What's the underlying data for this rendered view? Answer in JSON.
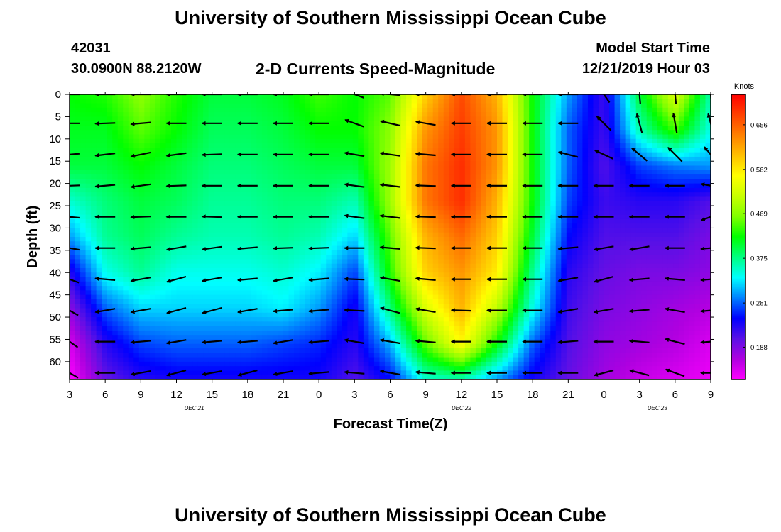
{
  "header": {
    "title": "University of Southern Mississippi Ocean Cube",
    "station_id": "42031",
    "location": "30.0900N 88.2120W",
    "subtitle": "2-D Currents Speed-Magnitude",
    "model_start_label": "Model Start Time",
    "model_start_value": "12/21/2019 Hour 03"
  },
  "footer": {
    "title": "University of Southern Mississippi Ocean Cube"
  },
  "chart_data": {
    "type": "heatmap",
    "title": "2-D Currents Speed-Magnitude",
    "xlabel": "Forecast Time(Z)",
    "ylabel": "Depth (ft)",
    "x_tick_labels": [
      "3",
      "6",
      "9",
      "12",
      "15",
      "18",
      "21",
      "0",
      "3",
      "6",
      "9",
      "12",
      "15",
      "18",
      "21",
      "0",
      "3",
      "6",
      "9"
    ],
    "x_range_hours_from_start": [
      0,
      54
    ],
    "day_labels": [
      {
        "text": "DEC  21",
        "at_hour": 10.5
      },
      {
        "text": "DEC  22",
        "at_hour": 33
      },
      {
        "text": "DEC  23",
        "at_hour": 49.5
      }
    ],
    "y_tick_labels": [
      "0",
      "5",
      "10",
      "15",
      "20",
      "25",
      "30",
      "35",
      "40",
      "45",
      "50",
      "55",
      "60"
    ],
    "ylim": [
      0,
      64
    ],
    "y_inverted": true,
    "colorbar": {
      "unit": "Knots",
      "tick_labels": [
        "0.656",
        "0.562",
        "0.469",
        "0.375",
        "0.281",
        "0.188"
      ],
      "range": [
        0.12,
        0.72
      ],
      "colors": [
        "#ff00ff",
        "#b000e0",
        "#5a10e6",
        "#0000ff",
        "#0080ff",
        "#00ffff",
        "#00ff80",
        "#00ff00",
        "#80ff00",
        "#c8ff00",
        "#ffff00",
        "#ffc000",
        "#ff8000",
        "#ff4000",
        "#ff0000"
      ]
    },
    "speed_grid": {
      "x_hours": [
        0,
        3,
        6,
        9,
        12,
        15,
        18,
        21,
        24,
        27,
        30,
        33,
        36,
        39,
        42,
        45,
        48,
        51,
        54
      ],
      "depths_ft": [
        0,
        8,
        16,
        24,
        32,
        40,
        48,
        56,
        64
      ],
      "rows": [
        [
          0.42,
          0.43,
          0.47,
          0.43,
          0.4,
          0.4,
          0.41,
          0.44,
          0.42,
          0.45,
          0.58,
          0.67,
          0.6,
          0.42,
          0.3,
          0.22,
          0.4,
          0.52,
          0.36
        ],
        [
          0.41,
          0.41,
          0.45,
          0.42,
          0.39,
          0.39,
          0.4,
          0.42,
          0.42,
          0.47,
          0.62,
          0.68,
          0.62,
          0.42,
          0.28,
          0.22,
          0.36,
          0.44,
          0.34
        ],
        [
          0.4,
          0.4,
          0.42,
          0.4,
          0.38,
          0.38,
          0.39,
          0.4,
          0.4,
          0.48,
          0.64,
          0.69,
          0.62,
          0.42,
          0.28,
          0.21,
          0.27,
          0.29,
          0.3
        ],
        [
          0.35,
          0.38,
          0.4,
          0.39,
          0.37,
          0.37,
          0.38,
          0.38,
          0.36,
          0.48,
          0.64,
          0.69,
          0.6,
          0.42,
          0.27,
          0.22,
          0.23,
          0.23,
          0.21
        ],
        [
          0.3,
          0.37,
          0.39,
          0.37,
          0.36,
          0.36,
          0.37,
          0.36,
          0.32,
          0.45,
          0.6,
          0.65,
          0.58,
          0.4,
          0.25,
          0.21,
          0.21,
          0.21,
          0.19
        ],
        [
          0.23,
          0.34,
          0.37,
          0.34,
          0.34,
          0.34,
          0.35,
          0.33,
          0.27,
          0.43,
          0.58,
          0.62,
          0.56,
          0.37,
          0.23,
          0.2,
          0.19,
          0.19,
          0.18
        ],
        [
          0.18,
          0.28,
          0.32,
          0.32,
          0.32,
          0.32,
          0.33,
          0.3,
          0.24,
          0.38,
          0.52,
          0.6,
          0.5,
          0.34,
          0.22,
          0.19,
          0.18,
          0.17,
          0.16
        ],
        [
          0.14,
          0.23,
          0.27,
          0.28,
          0.28,
          0.28,
          0.27,
          0.26,
          0.23,
          0.31,
          0.45,
          0.55,
          0.42,
          0.28,
          0.21,
          0.18,
          0.17,
          0.16,
          0.14
        ],
        [
          0.12,
          0.2,
          0.23,
          0.24,
          0.24,
          0.24,
          0.24,
          0.24,
          0.21,
          0.25,
          0.35,
          0.36,
          0.3,
          0.24,
          0.2,
          0.17,
          0.15,
          0.14,
          0.13
        ]
      ]
    },
    "vectors": {
      "x_hours": [
        0,
        3,
        6,
        9,
        12,
        15,
        18,
        21,
        24,
        27,
        30,
        33,
        36,
        39,
        42,
        45,
        48,
        51,
        54
      ],
      "depths_ft": [
        0,
        6.5,
        13.5,
        20.5,
        27.5,
        34.5,
        41.5,
        48.5,
        55.5,
        62.5
      ],
      "angle_deg": [
        [
          180,
          180,
          180,
          180,
          180,
          180,
          180,
          180,
          200,
          185,
          180,
          180,
          180,
          180,
          180,
          235,
          265,
          265,
          265
        ],
        [
          180,
          178,
          175,
          180,
          180,
          180,
          180,
          180,
          200,
          193,
          190,
          180,
          180,
          180,
          180,
          225,
          255,
          260,
          255
        ],
        [
          175,
          173,
          168,
          172,
          178,
          180,
          180,
          180,
          190,
          188,
          185,
          180,
          180,
          180,
          195,
          205,
          220,
          225,
          230
        ],
        [
          178,
          175,
          172,
          178,
          180,
          180,
          180,
          180,
          188,
          187,
          182,
          180,
          180,
          180,
          180,
          180,
          180,
          180,
          190
        ],
        [
          185,
          180,
          178,
          180,
          182,
          180,
          180,
          180,
          188,
          187,
          182,
          180,
          180,
          180,
          180,
          180,
          180,
          180,
          160
        ],
        [
          190,
          180,
          175,
          170,
          172,
          175,
          178,
          178,
          180,
          185,
          182,
          180,
          180,
          180,
          175,
          170,
          170,
          180,
          175
        ],
        [
          200,
          185,
          170,
          165,
          170,
          175,
          170,
          175,
          182,
          190,
          185,
          180,
          180,
          180,
          170,
          165,
          175,
          185,
          175
        ],
        [
          210,
          170,
          170,
          165,
          165,
          170,
          175,
          175,
          183,
          195,
          190,
          182,
          180,
          180,
          170,
          170,
          175,
          190,
          175
        ],
        [
          215,
          180,
          175,
          170,
          175,
          175,
          170,
          175,
          190,
          190,
          185,
          180,
          180,
          180,
          175,
          180,
          185,
          195,
          175
        ],
        [
          210,
          180,
          170,
          165,
          170,
          165,
          170,
          175,
          185,
          190,
          185,
          180,
          180,
          180,
          180,
          165,
          195,
          200,
          180
        ]
      ]
    }
  }
}
